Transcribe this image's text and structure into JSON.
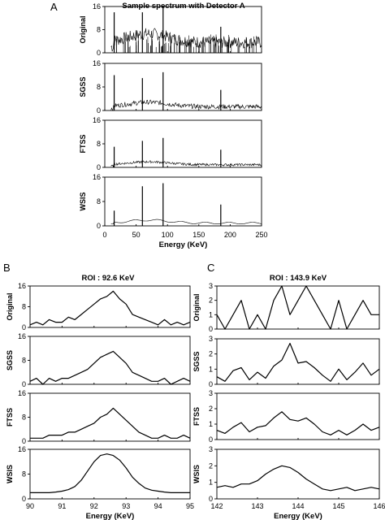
{
  "figure": {
    "panels": [
      {
        "letter": "A",
        "title": "Sample spectrum with Detector A"
      },
      {
        "letter": "B",
        "title": "ROI : 92.6 KeV"
      },
      {
        "letter": "C",
        "title": "ROI : 143.9 KeV"
      }
    ]
  },
  "chart_data": [
    {
      "panel": "A",
      "type": "line",
      "title": "Sample spectrum with Detector A",
      "xlabel": "Energy (KeV)",
      "xlim": [
        0,
        250
      ],
      "xticks": [
        "0",
        "50",
        "100",
        "150",
        "200",
        "250"
      ],
      "peaks_kev": [
        15,
        60,
        93,
        185
      ],
      "subplots": [
        {
          "ylabel": "Original",
          "ylim": [
            0,
            16
          ],
          "yticks": [
            "0",
            "8",
            "16"
          ],
          "peak_heights": [
            14,
            14,
            16,
            9
          ],
          "baseline": [
            1.5,
            4.5
          ]
        },
        {
          "ylabel": "SGSS",
          "ylim": [
            0,
            16
          ],
          "yticks": [
            "0",
            "8",
            "16"
          ],
          "peak_heights": [
            12,
            11,
            13,
            7
          ],
          "baseline": [
            0.5,
            2
          ]
        },
        {
          "ylabel": "FTSS",
          "ylim": [
            0,
            16
          ],
          "yticks": [
            "0",
            "8",
            "16"
          ],
          "peak_heights": [
            7,
            9,
            10,
            6
          ],
          "baseline": [
            0.5,
            1.5
          ]
        },
        {
          "ylabel": "WSIS",
          "ylim": [
            0,
            16
          ],
          "yticks": [
            "0",
            "8",
            "16"
          ],
          "peak_heights": [
            5,
            13,
            14,
            7
          ],
          "baseline": [
            0.5,
            1.5
          ]
        }
      ]
    },
    {
      "panel": "B",
      "type": "line",
      "title": "ROI : 92.6 KeV",
      "xlabel": "Energy (KeV)",
      "xlim": [
        90,
        95
      ],
      "xticks": [
        "90",
        "91",
        "92",
        "93",
        "94",
        "95"
      ],
      "subplots": [
        {
          "ylabel": "Original",
          "ylim": [
            0,
            16
          ],
          "yticks": [
            "0",
            "8",
            "16"
          ],
          "x": [
            90.0,
            90.2,
            90.4,
            90.6,
            90.8,
            91.0,
            91.2,
            91.4,
            91.6,
            91.8,
            92.0,
            92.2,
            92.4,
            92.6,
            92.8,
            93.0,
            93.2,
            93.4,
            93.6,
            93.8,
            94.0,
            94.2,
            94.4,
            94.6,
            94.8,
            95.0
          ],
          "y": [
            1,
            2,
            1,
            3,
            2,
            2,
            4,
            3,
            5,
            7,
            9,
            11,
            12,
            14,
            11,
            9,
            5,
            4,
            3,
            2,
            1,
            3,
            1,
            2,
            1,
            2
          ]
        },
        {
          "ylabel": "SGSS",
          "ylim": [
            0,
            16
          ],
          "yticks": [
            "0",
            "8",
            "16"
          ],
          "x": [
            90.0,
            90.2,
            90.4,
            90.6,
            90.8,
            91.0,
            91.2,
            91.4,
            91.6,
            91.8,
            92.0,
            92.2,
            92.4,
            92.6,
            92.8,
            93.0,
            93.2,
            93.4,
            93.6,
            93.8,
            94.0,
            94.2,
            94.4,
            94.6,
            94.8,
            95.0
          ],
          "y": [
            1,
            2,
            0,
            2,
            1,
            2,
            2,
            3,
            4,
            5,
            7,
            9,
            10,
            11,
            9,
            7,
            4,
            3,
            2,
            1,
            1,
            2,
            0,
            1,
            2,
            1
          ]
        },
        {
          "ylabel": "FTSS",
          "ylim": [
            0,
            16
          ],
          "yticks": [
            "0",
            "8",
            "16"
          ],
          "x": [
            90.0,
            90.2,
            90.4,
            90.6,
            90.8,
            91.0,
            91.2,
            91.4,
            91.6,
            91.8,
            92.0,
            92.2,
            92.4,
            92.6,
            92.8,
            93.0,
            93.2,
            93.4,
            93.6,
            93.8,
            94.0,
            94.2,
            94.4,
            94.6,
            94.8,
            95.0
          ],
          "y": [
            1,
            1,
            1,
            2,
            2,
            2,
            3,
            3,
            4,
            5,
            6,
            8,
            9,
            11,
            9,
            7,
            5,
            3,
            2,
            1,
            1,
            2,
            1,
            1,
            2,
            1
          ]
        },
        {
          "ylabel": "WSIS",
          "ylim": [
            0,
            16
          ],
          "yticks": [
            "0",
            "8",
            "16"
          ],
          "x": [
            90.0,
            90.2,
            90.4,
            90.6,
            90.8,
            91.0,
            91.2,
            91.4,
            91.6,
            91.8,
            92.0,
            92.2,
            92.4,
            92.6,
            92.8,
            93.0,
            93.2,
            93.4,
            93.6,
            93.8,
            94.0,
            94.2,
            94.4,
            94.6,
            94.8,
            95.0
          ],
          "y": [
            2,
            2,
            2,
            2,
            2.2,
            2.5,
            3,
            4,
            6,
            9,
            12,
            14,
            14.5,
            14,
            12.5,
            10,
            7,
            5,
            3.5,
            2.8,
            2.5,
            2.2,
            2,
            2,
            2,
            2
          ]
        }
      ]
    },
    {
      "panel": "C",
      "type": "line",
      "title": "ROI : 143.9 KeV",
      "xlabel": "Energy (KeV)",
      "xlim": [
        142,
        146
      ],
      "xticks": [
        "142",
        "143",
        "144",
        "145",
        "146"
      ],
      "subplots": [
        {
          "ylabel": "Original",
          "ylim": [
            0,
            3
          ],
          "yticks": [
            "0",
            "1",
            "2",
            "3"
          ],
          "x": [
            142.0,
            142.2,
            142.4,
            142.6,
            142.8,
            143.0,
            143.2,
            143.4,
            143.6,
            143.8,
            144.0,
            144.2,
            144.4,
            144.6,
            144.8,
            145.0,
            145.2,
            145.4,
            145.6,
            145.8,
            146.0
          ],
          "y": [
            1,
            0,
            1,
            2,
            0,
            1,
            0,
            2,
            3,
            1,
            2,
            3,
            2,
            1,
            0,
            2,
            0,
            1,
            2,
            1,
            1
          ]
        },
        {
          "ylabel": "SGSS",
          "ylim": [
            0,
            3
          ],
          "yticks": [
            "0",
            "1",
            "2",
            "3"
          ],
          "x": [
            142.0,
            142.2,
            142.4,
            142.6,
            142.8,
            143.0,
            143.2,
            143.4,
            143.6,
            143.8,
            144.0,
            144.2,
            144.4,
            144.6,
            144.8,
            145.0,
            145.2,
            145.4,
            145.6,
            145.8,
            146.0
          ],
          "y": [
            0.5,
            0.2,
            0.9,
            1.1,
            0.3,
            0.8,
            0.4,
            1.2,
            1.6,
            2.7,
            1.4,
            1.5,
            1.1,
            0.6,
            0.2,
            1.0,
            0.3,
            0.8,
            1.4,
            0.6,
            1.0
          ]
        },
        {
          "ylabel": "FTSS",
          "ylim": [
            0,
            3
          ],
          "yticks": [
            "0",
            "1",
            "2",
            "3"
          ],
          "x": [
            142.0,
            142.2,
            142.4,
            142.6,
            142.8,
            143.0,
            143.2,
            143.4,
            143.6,
            143.8,
            144.0,
            144.2,
            144.4,
            144.6,
            144.8,
            145.0,
            145.2,
            145.4,
            145.6,
            145.8,
            146.0
          ],
          "y": [
            0.6,
            0.4,
            0.8,
            1.1,
            0.5,
            0.8,
            0.9,
            1.4,
            1.8,
            1.3,
            1.2,
            1.4,
            1.0,
            0.5,
            0.3,
            0.6,
            0.3,
            0.6,
            1.0,
            0.6,
            0.8
          ]
        },
        {
          "ylabel": "WSIS",
          "ylim": [
            0,
            3
          ],
          "yticks": [
            "0",
            "1",
            "2",
            "3"
          ],
          "x": [
            142.0,
            142.2,
            142.4,
            142.6,
            142.8,
            143.0,
            143.2,
            143.4,
            143.6,
            143.8,
            144.0,
            144.2,
            144.4,
            144.6,
            144.8,
            145.0,
            145.2,
            145.4,
            145.6,
            145.8,
            146.0
          ],
          "y": [
            0.7,
            0.8,
            0.7,
            0.9,
            0.9,
            1.1,
            1.5,
            1.8,
            2.0,
            1.9,
            1.6,
            1.2,
            0.9,
            0.6,
            0.5,
            0.6,
            0.7,
            0.5,
            0.6,
            0.7,
            0.6
          ]
        }
      ]
    }
  ]
}
